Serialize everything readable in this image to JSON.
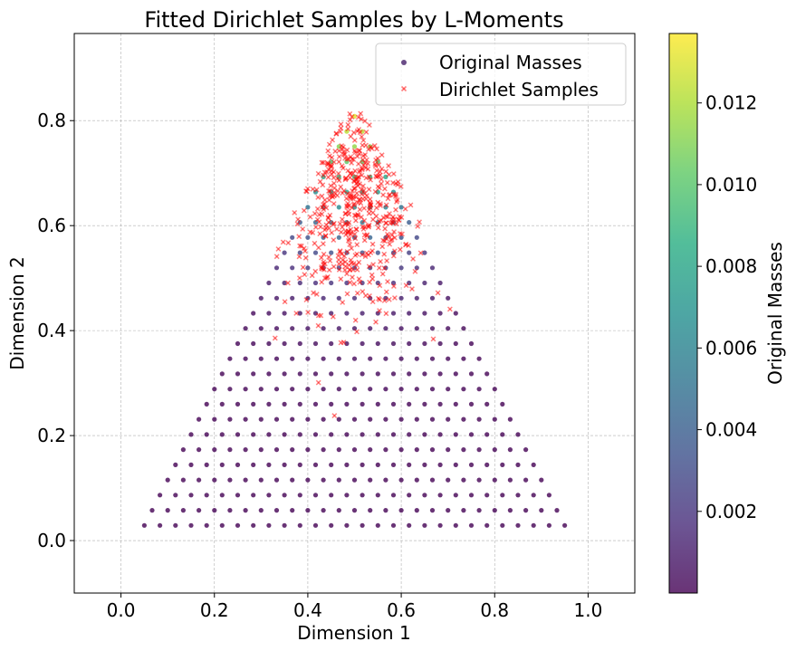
{
  "chart_data": {
    "type": "scatter",
    "title": "Fitted Dirichlet Samples by L-Moments",
    "xlabel": "Dimension 1",
    "ylabel": "Dimension 2",
    "xlim": [
      -0.1,
      1.1
    ],
    "ylim": [
      -0.1,
      0.966
    ],
    "xticks": [
      0.0,
      0.2,
      0.4,
      0.6,
      0.8,
      1.0
    ],
    "xtick_labels": [
      "0.0",
      "0.2",
      "0.4",
      "0.6",
      "0.8",
      "1.0"
    ],
    "yticks": [
      0.0,
      0.2,
      0.4,
      0.6,
      0.8
    ],
    "ytick_labels": [
      "0.0",
      "0.2",
      "0.4",
      "0.6",
      "0.8"
    ],
    "grid": true,
    "legend": {
      "position": "top-right",
      "entries": [
        {
          "label": "Original Masses",
          "marker": "circle",
          "color": "#46216a"
        },
        {
          "label": "Dirichlet Samples",
          "marker": "x",
          "color": "#ff0000"
        }
      ]
    },
    "colorbar": {
      "label": "Original Masses",
      "min": 0.0,
      "max": 0.0137,
      "ticks": [
        0.002,
        0.004,
        0.006,
        0.008,
        0.01,
        0.012
      ],
      "tick_labels": [
        "0.002",
        "0.004",
        "0.006",
        "0.008",
        "0.010",
        "0.012"
      ],
      "colormap": "viridis"
    },
    "series": [
      {
        "name": "Original Masses",
        "description": "Regular lattice on a 2-simplex projected to 2D (step 1/30); color encodes mass, concentrated near the apex (0.5, 0.866).",
        "lattice_n": 30,
        "apex": [
          0.5,
          0.866
        ],
        "mass_peak": 0.0137,
        "alpha": 0.8
      },
      {
        "name": "Dirichlet Samples",
        "description": "Random samples drawn from the fitted Dirichlet, concentrated in the upper part of the triangle.",
        "count": 500,
        "center": [
          0.5,
          0.6
        ],
        "color": "#ff0000",
        "alpha": 0.5
      }
    ]
  }
}
